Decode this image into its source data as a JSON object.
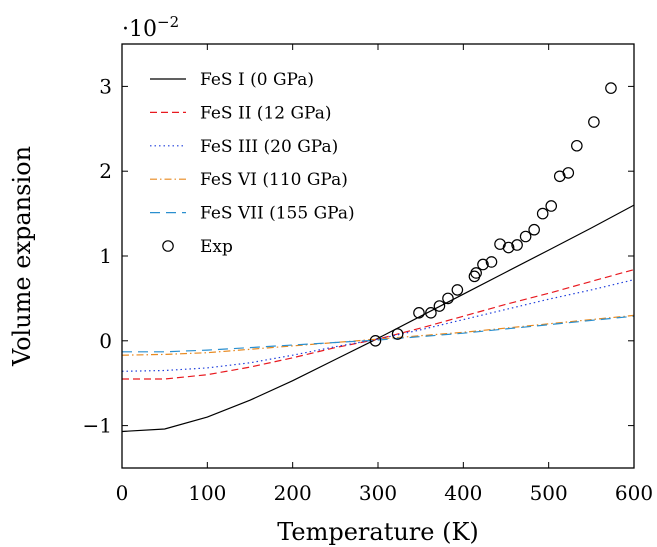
{
  "chart_data": {
    "type": "line",
    "xlabel": "Temperature (K)",
    "ylabel": "Volume expansion",
    "y_multiplier": {
      "base": "·10",
      "exponent": "−2"
    },
    "xlim": [
      0,
      600
    ],
    "ylim": [
      -1.5,
      3.5
    ],
    "x_ticks": [
      0,
      100,
      200,
      300,
      400,
      500,
      600
    ],
    "y_ticks": [
      -1,
      0,
      1,
      2,
      3
    ],
    "x_tick_labels": [
      "0",
      "100",
      "200",
      "300",
      "400",
      "500",
      "600"
    ],
    "y_tick_labels": [
      "−1",
      "0",
      "1",
      "2",
      "3"
    ],
    "grid": false,
    "legend_position": "top-left",
    "series": [
      {
        "name": "FeS I (0 GPa)",
        "color": "#000000",
        "dash": "solid",
        "x": [
          0,
          50,
          100,
          150,
          200,
          250,
          300,
          350,
          400,
          450,
          500,
          550,
          600
        ],
        "y": [
          -1.07,
          -1.04,
          -0.9,
          -0.7,
          -0.47,
          -0.22,
          0.03,
          0.29,
          0.55,
          0.81,
          1.07,
          1.33,
          1.6
        ]
      },
      {
        "name": "FeS II (12 GPa)",
        "color": "#e8191f",
        "dash": "dashed",
        "x": [
          0,
          50,
          100,
          150,
          200,
          250,
          300,
          350,
          400,
          450,
          500,
          550,
          600
        ],
        "y": [
          -0.45,
          -0.45,
          -0.4,
          -0.31,
          -0.2,
          -0.08,
          0.02,
          0.15,
          0.29,
          0.43,
          0.56,
          0.7,
          0.84
        ]
      },
      {
        "name": "FeS III (20 GPa)",
        "color": "#1f3fdc",
        "dash": "dotted",
        "x": [
          0,
          50,
          100,
          150,
          200,
          250,
          300,
          350,
          400,
          450,
          500,
          550,
          600
        ],
        "y": [
          -0.36,
          -0.35,
          -0.32,
          -0.26,
          -0.17,
          -0.07,
          0.02,
          0.13,
          0.25,
          0.37,
          0.49,
          0.6,
          0.72
        ]
      },
      {
        "name": "FeS VI (110 GPa)",
        "color": "#e8891f",
        "dash": "dashdot",
        "x": [
          0,
          50,
          100,
          150,
          200,
          250,
          300,
          350,
          400,
          450,
          500,
          550,
          600
        ],
        "y": [
          -0.17,
          -0.16,
          -0.14,
          -0.1,
          -0.06,
          -0.02,
          0.02,
          0.06,
          0.1,
          0.15,
          0.2,
          0.25,
          0.3
        ]
      },
      {
        "name": "FeS VII (155 GPa)",
        "color": "#2a8fcf",
        "dash": "longdash",
        "x": [
          0,
          50,
          100,
          150,
          200,
          250,
          300,
          350,
          400,
          450,
          500,
          550,
          600
        ],
        "y": [
          -0.13,
          -0.13,
          -0.11,
          -0.08,
          -0.05,
          -0.02,
          0.01,
          0.05,
          0.09,
          0.14,
          0.19,
          0.24,
          0.29
        ]
      },
      {
        "name": "Exp",
        "color": "#000000",
        "marker": "circle",
        "line": false,
        "x": [
          297,
          323,
          348,
          362,
          372,
          382,
          393,
          413,
          415,
          423,
          433,
          443,
          453,
          463,
          473,
          483,
          493,
          503,
          513,
          523,
          533,
          553,
          573
        ],
        "y": [
          0.0,
          0.08,
          0.33,
          0.33,
          0.41,
          0.5,
          0.6,
          0.76,
          0.8,
          0.9,
          0.93,
          1.14,
          1.1,
          1.13,
          1.23,
          1.31,
          1.5,
          1.59,
          1.94,
          1.98,
          2.3,
          2.58,
          2.98
        ]
      }
    ]
  }
}
